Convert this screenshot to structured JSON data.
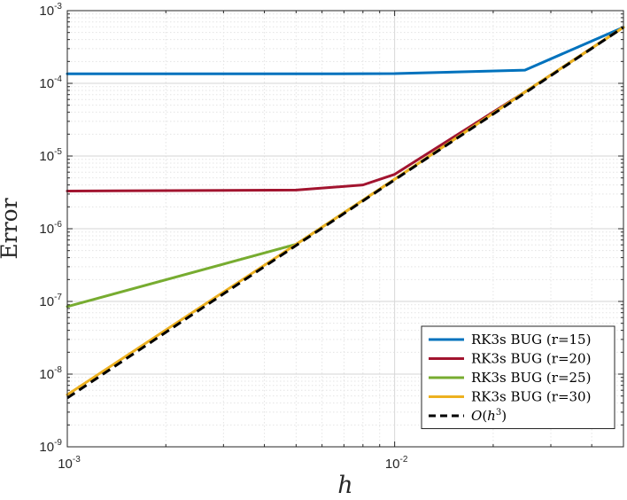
{
  "chart_data": {
    "type": "line",
    "xscale": "log",
    "yscale": "log",
    "xlim": [
      0.001,
      0.05
    ],
    "ylim": [
      1e-09,
      0.001
    ],
    "grid": true,
    "minor_grid": true,
    "xlabel": "h",
    "ylabel": "Error",
    "legend_position": "bottom-right",
    "x_ticks": [
      {
        "value": 0.001,
        "base": "10",
        "exp": "-3"
      },
      {
        "value": 0.01,
        "base": "10",
        "exp": "-2"
      }
    ],
    "y_ticks": [
      {
        "value": 1e-09,
        "base": "10",
        "exp": "-9"
      },
      {
        "value": 1e-08,
        "base": "10",
        "exp": "-8"
      },
      {
        "value": 1e-07,
        "base": "10",
        "exp": "-7"
      },
      {
        "value": 1e-06,
        "base": "10",
        "exp": "-6"
      },
      {
        "value": 1e-05,
        "base": "10",
        "exp": "-5"
      },
      {
        "value": 0.0001,
        "base": "10",
        "exp": "-4"
      },
      {
        "value": 0.001,
        "base": "10",
        "exp": "-3"
      }
    ],
    "series": [
      {
        "name": "RK3s BUG (r=15)",
        "color": "#0072BD",
        "dash": "solid",
        "x": [
          0.001,
          0.005,
          0.01,
          0.025,
          0.05
        ],
        "y": [
          0.000135,
          0.000135,
          0.000136,
          0.000152,
          0.00059
        ]
      },
      {
        "name": "RK3s BUG (r=20)",
        "color": "#A2142F",
        "dash": "solid",
        "x": [
          0.001,
          0.005,
          0.008,
          0.01,
          0.025,
          0.05
        ],
        "y": [
          3.3e-06,
          3.4e-06,
          4e-06,
          5.6e-06,
          7.6e-05,
          0.00059
        ]
      },
      {
        "name": "RK3s BUG (r=25)",
        "color": "#77AC30",
        "dash": "solid",
        "x": [
          0.001,
          0.005,
          0.01,
          0.025,
          0.05
        ],
        "y": [
          8.5e-08,
          6.1e-07,
          4.8e-06,
          7.6e-05,
          0.00059
        ]
      },
      {
        "name": "RK3s BUG (r=30)",
        "color": "#EDB120",
        "dash": "solid",
        "x": [
          0.001,
          0.005,
          0.01,
          0.025,
          0.05
        ],
        "y": [
          5.2e-09,
          6.1e-07,
          4.8e-06,
          7.6e-05,
          0.00059
        ]
      },
      {
        "name": "O(h^3)",
        "label_prefix": "O(",
        "label_var": "h",
        "label_exp": "3",
        "label_suffix": ")",
        "color": "#000000",
        "dash": "dashed",
        "x": [
          0.001,
          0.05
        ],
        "y": [
          4.7e-09,
          0.00059
        ]
      }
    ]
  }
}
